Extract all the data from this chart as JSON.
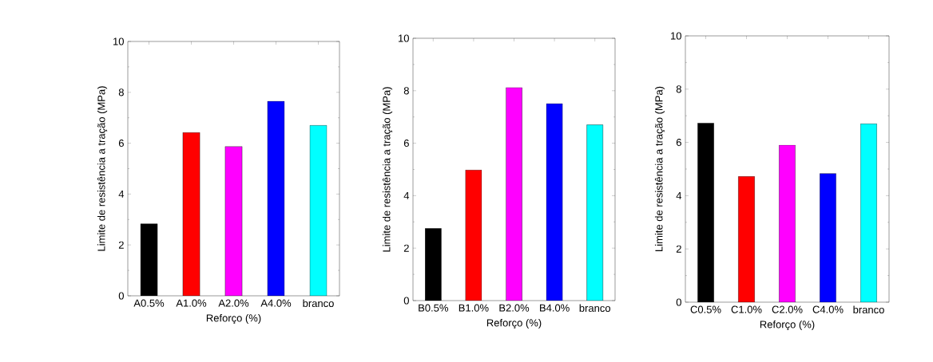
{
  "chart_data": [
    {
      "type": "bar",
      "categories": [
        "A0.5%",
        "A1.0%",
        "A2.0%",
        "A4.0%",
        "branco"
      ],
      "values": [
        2.83,
        6.42,
        5.87,
        7.65,
        6.7
      ],
      "colors": [
        "#000000",
        "#ff0000",
        "#ff00ff",
        "#0000ff",
        "#00ffff"
      ],
      "ylim": [
        0,
        10
      ],
      "yticks": [
        0,
        2,
        4,
        6,
        8,
        10
      ],
      "xlabel": "Reforço (%)",
      "ylabel": "Limite de resistência a tração (MPa)"
    },
    {
      "type": "bar",
      "categories": [
        "B0.5%",
        "B1.0%",
        "B2.0%",
        "B4.0%",
        "branco"
      ],
      "values": [
        2.75,
        4.98,
        8.12,
        7.51,
        6.7
      ],
      "colors": [
        "#000000",
        "#ff0000",
        "#ff00ff",
        "#0000ff",
        "#00ffff"
      ],
      "ylim": [
        0,
        10
      ],
      "yticks": [
        0,
        2,
        4,
        6,
        8,
        10
      ],
      "xlabel": "Reforço (%)",
      "ylabel": "Limite de resistência a tração (MPa)"
    },
    {
      "type": "bar",
      "categories": [
        "C0.5%",
        "C1.0%",
        "C2.0%",
        "C4.0%",
        "branco"
      ],
      "values": [
        6.72,
        4.72,
        5.9,
        4.83,
        6.7
      ],
      "colors": [
        "#000000",
        "#ff0000",
        "#ff00ff",
        "#0000ff",
        "#00ffff"
      ],
      "ylim": [
        0,
        10
      ],
      "yticks": [
        0,
        2,
        4,
        6,
        8,
        10
      ],
      "xlabel": "Reforço (%)",
      "ylabel": "Limite de resistência a tração (MPa)"
    }
  ]
}
